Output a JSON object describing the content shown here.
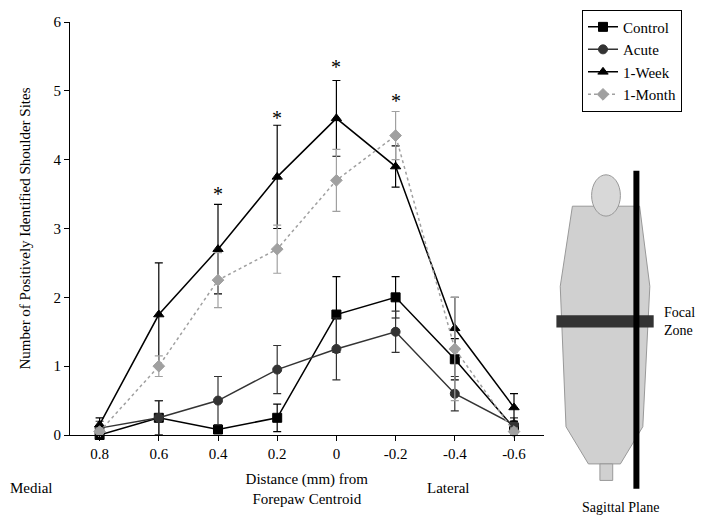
{
  "chart_data": {
    "type": "line",
    "xlabel": [
      "Distance (mm) from",
      "Forepaw Centroid"
    ],
    "ylabel": "Number of Positively Identified Shoulder Sites",
    "x": [
      0.8,
      0.6,
      0.4,
      0.2,
      0,
      -0.2,
      -0.4,
      -0.6
    ],
    "xlim": [
      0.9,
      -0.7
    ],
    "xticks": [
      0.8,
      0.6,
      0.4,
      0.2,
      0,
      -0.2,
      -0.4,
      -0.6
    ],
    "ylim": [
      0,
      6
    ],
    "yticks": [
      0,
      1,
      2,
      3,
      4,
      5,
      6
    ],
    "grid": false,
    "legend": "upper right",
    "series": [
      {
        "name": "Control",
        "color": "#000000",
        "marker": "square",
        "line_style": "solid",
        "values": [
          0,
          0.25,
          0.08,
          0.25,
          1.75,
          2.0,
          1.1,
          0.1
        ],
        "errors": [
          0.05,
          0.25,
          0.05,
          0.2,
          0.55,
          0.3,
          0.3,
          0.1
        ]
      },
      {
        "name": "Acute",
        "color": "#333333",
        "marker": "circle",
        "line_style": "solid",
        "values": [
          0.1,
          0.25,
          0.5,
          0.95,
          1.25,
          1.5,
          0.6,
          0.15
        ],
        "errors": [
          0.1,
          0.25,
          0.35,
          0.35,
          0.45,
          0.3,
          0.25,
          0.1
        ]
      },
      {
        "name": "1-Week",
        "color": "#000000",
        "marker": "triangle-up",
        "line_style": "solid",
        "values": [
          0.15,
          1.75,
          2.7,
          3.75,
          4.6,
          3.9,
          1.55,
          0.4
        ],
        "errors": [
          0.1,
          0.75,
          0.65,
          0.75,
          0.55,
          0.3,
          0.45,
          0.2
        ]
      },
      {
        "name": "1-Month",
        "color": "#a0a0a0",
        "marker": "diamond",
        "line_style": "dot",
        "values": [
          0.05,
          1.0,
          2.25,
          2.7,
          3.7,
          4.35,
          1.25,
          0.05
        ],
        "errors": [
          0.05,
          0.15,
          0.4,
          0.35,
          0.45,
          0.35,
          0.75,
          0.05
        ]
      }
    ],
    "annotations": [
      {
        "x": 0.4,
        "y": 3.5,
        "text": "*"
      },
      {
        "x": 0.2,
        "y": 4.6,
        "text": "*"
      },
      {
        "x": 0,
        "y": 5.35,
        "text": "*"
      },
      {
        "x": -0.2,
        "y": 4.85,
        "text": "*"
      }
    ],
    "axis_end_labels": [
      "Medial",
      "Lateral"
    ],
    "figure_labels": {
      "focal_zone": [
        "Focal",
        "Zone"
      ],
      "sagittal_plane": "Sagittal Plane"
    }
  }
}
